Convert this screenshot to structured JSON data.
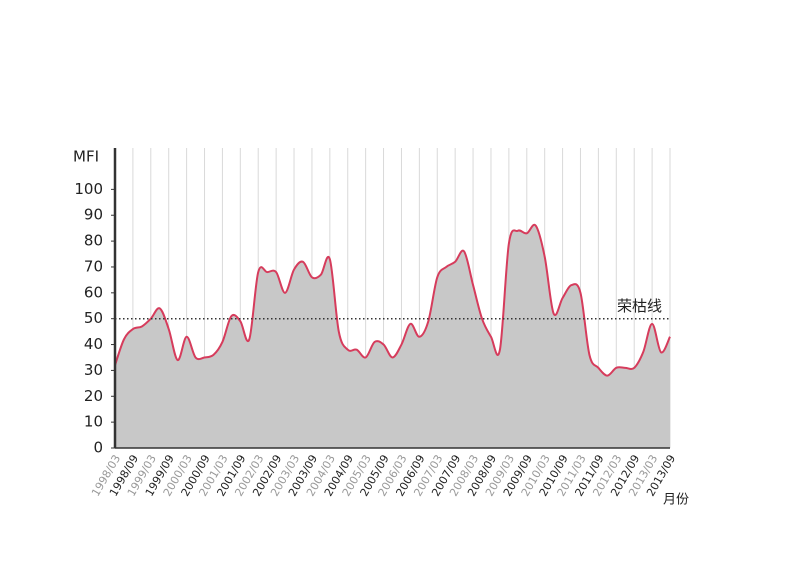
{
  "chart_data": {
    "type": "area",
    "y_label": "MFI",
    "x_label": "月份",
    "categories": [
      "1998/03",
      null,
      "1998/09",
      null,
      "1999/03",
      null,
      "1999/09",
      null,
      "2000/03",
      null,
      "2000/09",
      null,
      "2001/03",
      null,
      "2001/09",
      null,
      "2002/03",
      null,
      "2002/09",
      null,
      "2003/03",
      null,
      "2003/09",
      null,
      "2004/03",
      null,
      "2004/09",
      null,
      "2005/03",
      null,
      "2005/09",
      null,
      "2006/03",
      null,
      "2006/09",
      null,
      "2007/03",
      null,
      "2007/09",
      null,
      "2008/03",
      null,
      "2008/09",
      null,
      "2009/03",
      null,
      "2009/09",
      null,
      "2010/03",
      null,
      "2010/09",
      null,
      "2011/03",
      null,
      "2011/09",
      null,
      "2012/03",
      null,
      "2012/09",
      null,
      "2013/03",
      null,
      "2013/09"
    ],
    "series": [
      {
        "name": "MFI",
        "color": "#d63c5c",
        "fill": "#c8c8c8",
        "values": [
          32,
          42,
          46,
          47,
          50,
          54,
          46,
          34,
          43,
          35,
          35,
          36,
          41,
          51,
          49,
          42,
          68,
          68,
          68,
          60,
          69,
          72,
          66,
          67,
          73,
          45,
          38,
          38,
          35,
          41,
          40,
          35,
          40,
          48,
          43,
          49,
          66,
          70,
          72,
          76,
          63,
          50,
          43,
          38,
          79,
          84,
          83,
          86,
          74,
          52,
          58,
          63,
          60,
          36,
          31,
          28,
          31,
          31,
          31,
          37,
          48,
          37,
          43
        ]
      }
    ],
    "reference_line": {
      "value": 50,
      "label": "荣枯线"
    },
    "ylim": [
      0,
      116
    ],
    "yticks": [
      0,
      10,
      20,
      30,
      40,
      50,
      60,
      70,
      80,
      90,
      100
    ]
  }
}
